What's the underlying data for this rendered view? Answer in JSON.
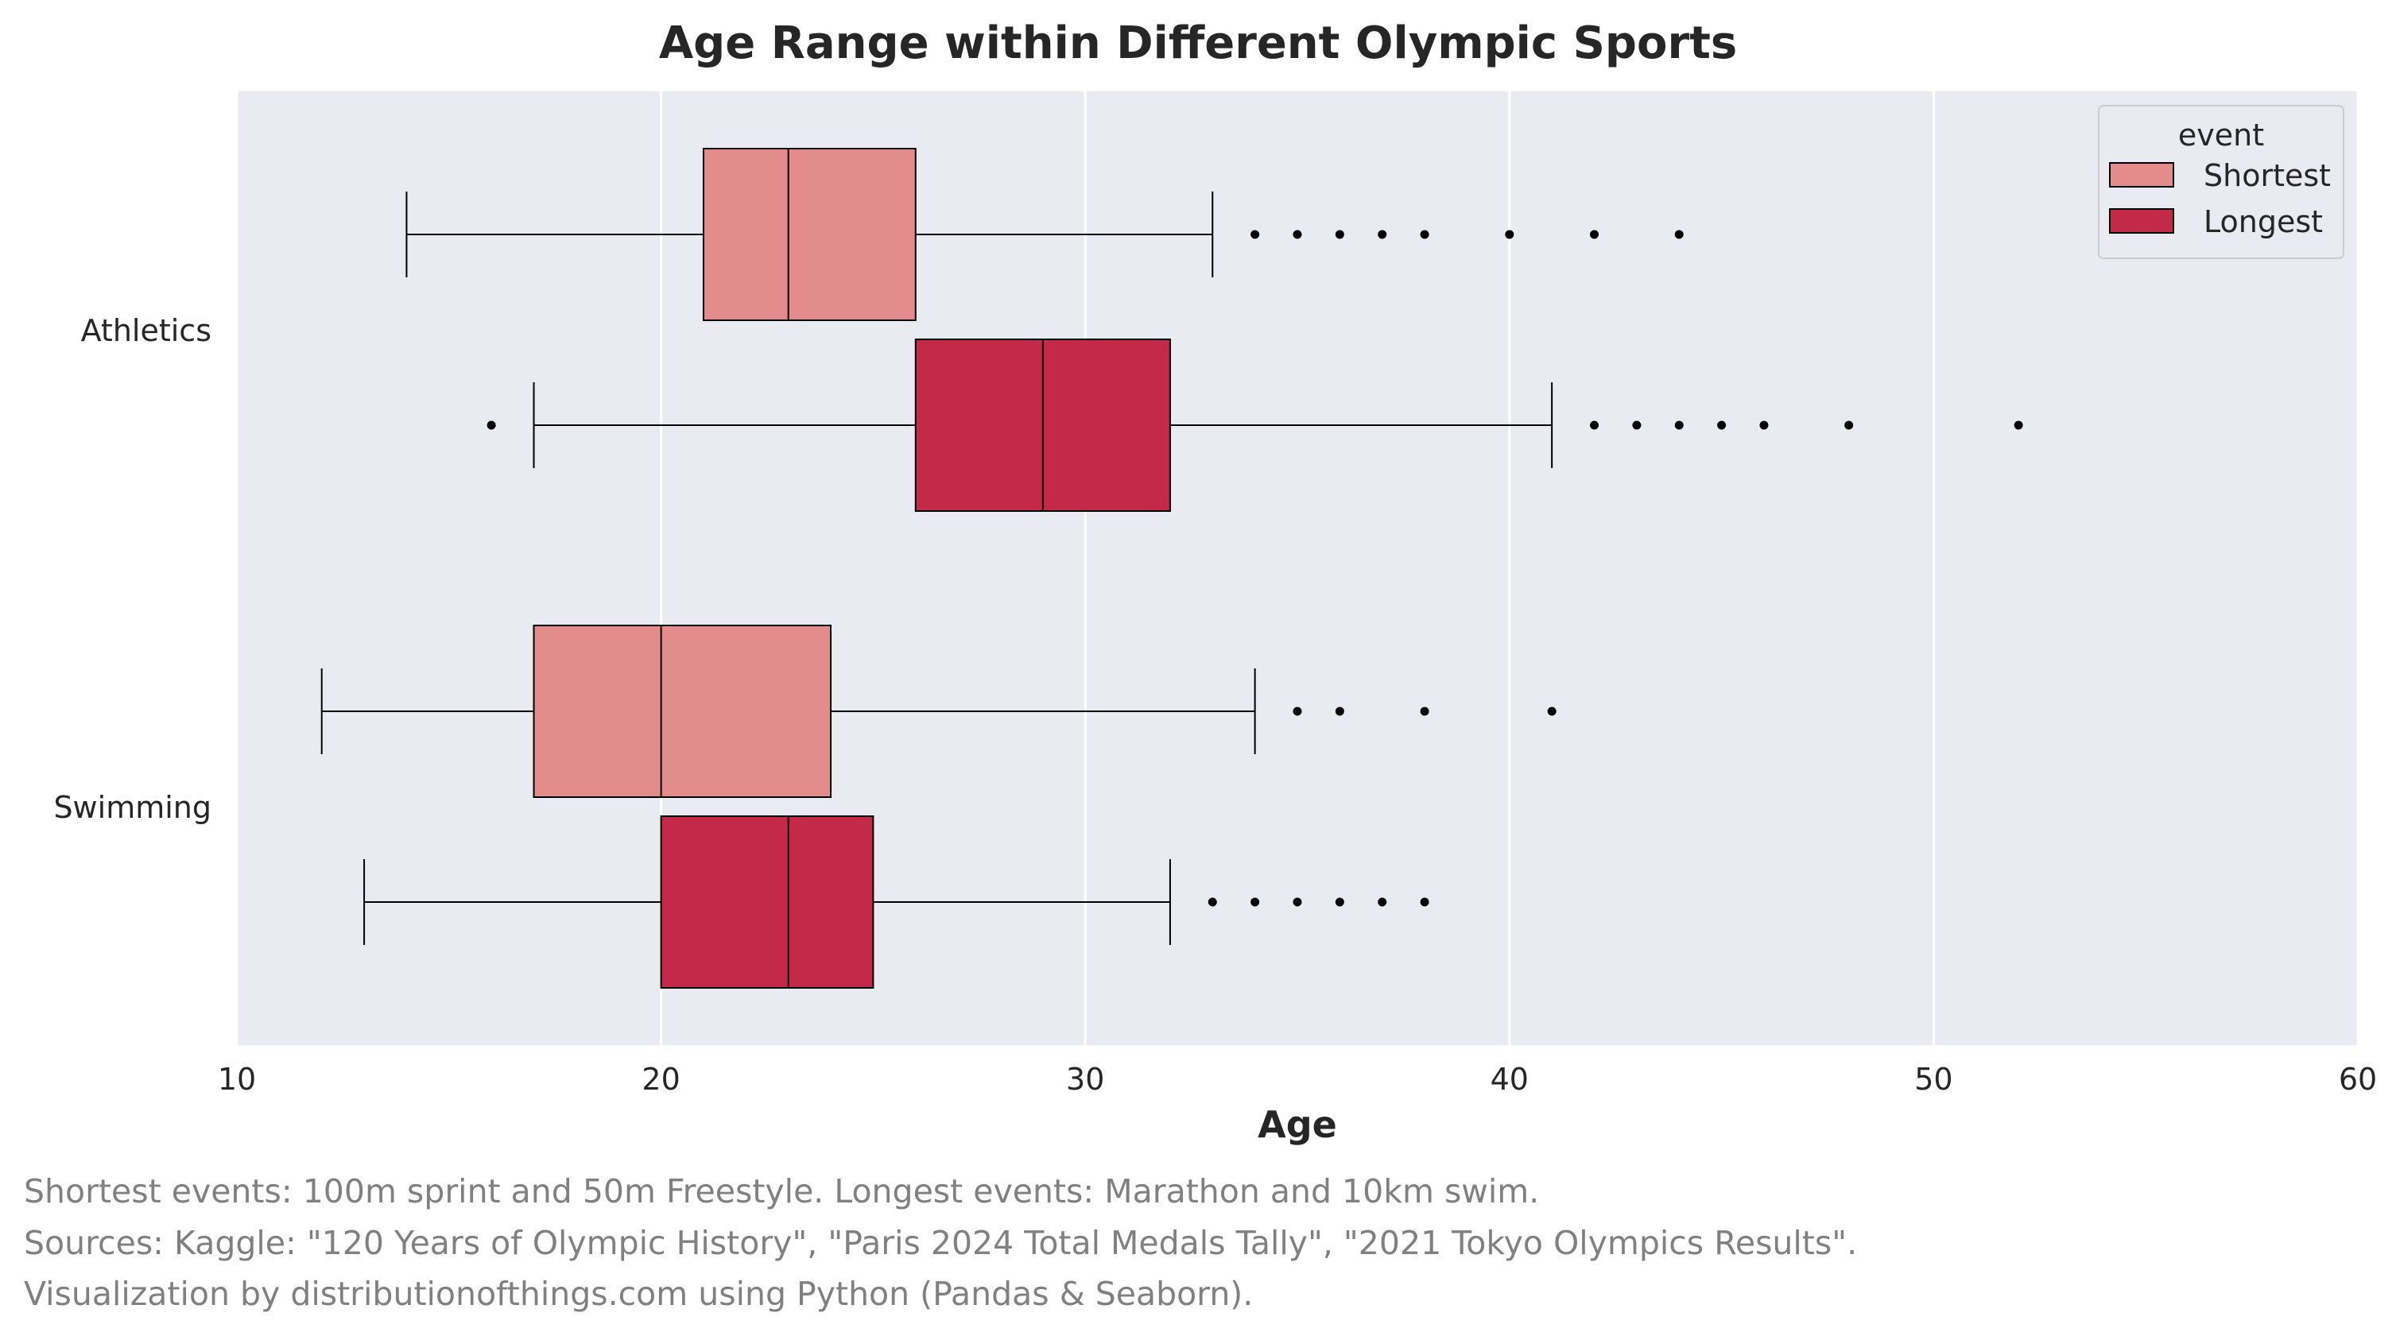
{
  "chart_data": {
    "type": "boxplot",
    "orientation": "horizontal",
    "title": "Age Range within Different Olympic Sports",
    "xlabel": "Age",
    "ylabel": "",
    "xlim": [
      10,
      60
    ],
    "xticks": [
      10,
      20,
      30,
      40,
      50,
      60
    ],
    "categories": [
      "Athletics",
      "Swimming"
    ],
    "grid": true,
    "legend": {
      "title": "event",
      "position": "top-right"
    },
    "series": [
      {
        "name": "Shortest",
        "color": "#E28C8C",
        "boxes": [
          {
            "category": "Athletics",
            "whisker_low": 14,
            "q1": 21,
            "median": 23,
            "q3": 26,
            "whisker_high": 33,
            "outliers": [
              34,
              35,
              36,
              37,
              38,
              40,
              42,
              44
            ]
          },
          {
            "category": "Swimming",
            "whisker_low": 12,
            "q1": 17,
            "median": 20,
            "q3": 24,
            "whisker_high": 34,
            "outliers": [
              35,
              36,
              38,
              41
            ]
          }
        ]
      },
      {
        "name": "Longest",
        "color": "#C32A4A",
        "boxes": [
          {
            "category": "Athletics",
            "whisker_low": 17,
            "q1": 26,
            "median": 29,
            "q3": 32,
            "whisker_high": 41,
            "outliers": [
              16,
              42,
              43,
              44,
              45,
              46,
              48,
              52
            ]
          },
          {
            "category": "Swimming",
            "whisker_low": 13,
            "q1": 20,
            "median": 23,
            "q3": 25,
            "whisker_high": 32,
            "outliers": [
              33,
              34,
              35,
              36,
              37,
              38
            ]
          }
        ]
      }
    ]
  },
  "captions": [
    "Shortest events: 100m sprint and 50m Freestyle. Longest events: Marathon and 10km swim.",
    "Sources: Kaggle: \"120 Years of Olympic History\", \"Paris 2024 Total Medals Tally\", \"2021 Tokyo Olympics Results\".",
    "Visualization by distributionofthings.com using Python (Pandas & Seaborn)."
  ],
  "colors": {
    "plot_background": "#EAEAF2",
    "grid": "#FFFFFF",
    "text": "#262626",
    "caption": "#808080"
  }
}
